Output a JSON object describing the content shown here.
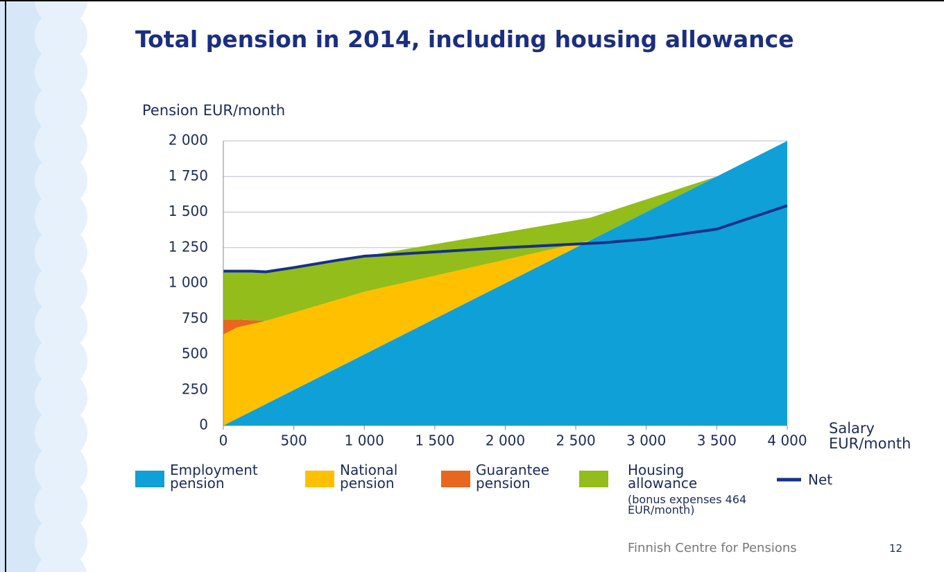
{
  "chart_data": {
    "type": "area",
    "title": "Total pension in 2014, including housing allowance",
    "y_label": "Pension EUR/month",
    "x_label": "Salary EUR/month",
    "x": [
      0,
      100,
      300,
      1000,
      2600,
      3500,
      4000
    ],
    "series": [
      {
        "name": "Employment pension",
        "color": "#0fa0d8",
        "values": [
          0,
          50,
          150,
          500,
          1300,
          1750,
          2000
        ]
      },
      {
        "name": "National pension",
        "color": "#ffc000",
        "values": [
          640,
          640,
          585,
          440,
          0,
          0,
          0
        ]
      },
      {
        "name": "Guarantee pension",
        "color": "#e8661e",
        "values": [
          105,
          55,
          0,
          0,
          0,
          0,
          0
        ]
      },
      {
        "name": "Housing allowance",
        "note": "(bonus expenses 464 EUR/month)",
        "color": "#93bd1a",
        "values": [
          330,
          330,
          340,
          250,
          160,
          0,
          0
        ]
      },
      {
        "name": "Net",
        "type": "line",
        "color": "#17308a",
        "x": [
          0,
          200,
          300,
          500,
          800,
          1000,
          1500,
          2000,
          2500,
          2700,
          3000,
          3500,
          4000
        ],
        "values": [
          1085,
          1085,
          1080,
          1110,
          1160,
          1190,
          1220,
          1250,
          1275,
          1285,
          1310,
          1380,
          1545
        ]
      }
    ],
    "xlim": [
      0,
      4000
    ],
    "xticks": [
      0,
      500,
      {
        "value": 1000,
        "label": "1 000"
      },
      {
        "value": 1500,
        "label": "1 500"
      },
      {
        "value": 2000,
        "label": "2 000"
      },
      {
        "value": 2500,
        "label": "2 500"
      },
      {
        "value": 3000,
        "label": "3 000"
      },
      {
        "value": 3500,
        "label": "3 500"
      },
      {
        "value": 4000,
        "label": "4 000"
      }
    ],
    "ylim": [
      0,
      2000
    ],
    "yticks": [
      0,
      250,
      500,
      750,
      {
        "value": 1000,
        "label": "1 000"
      },
      {
        "value": 1250,
        "label": "1 250"
      },
      {
        "value": 1500,
        "label": "1 500"
      },
      {
        "value": 1750,
        "label": "1 750"
      },
      {
        "value": 2000,
        "label": "2 000"
      }
    ],
    "grid": true
  },
  "footer": {
    "source": "Finnish Centre for Pensions",
    "page": "12"
  }
}
